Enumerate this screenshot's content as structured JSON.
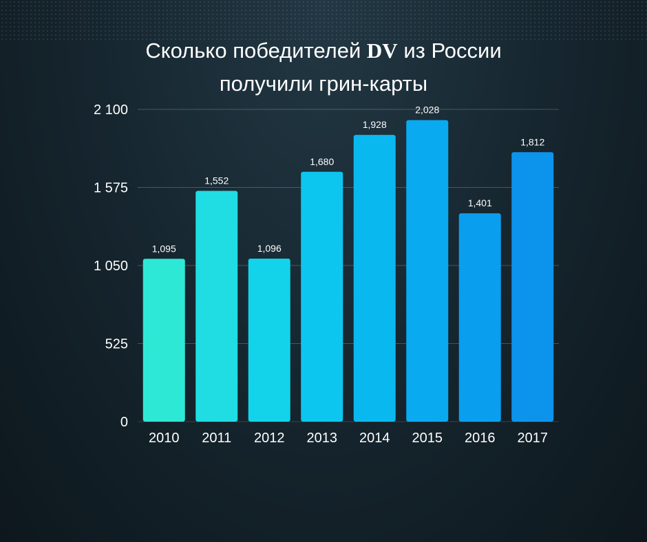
{
  "title": {
    "part1": "Сколько победителей ",
    "accent": "DV",
    "part2": " из России",
    "line2": "получили грин-карты"
  },
  "chart_data": {
    "type": "bar",
    "title": "Сколько победителей DV из России получили грин-карты",
    "categories": [
      "2010",
      "2011",
      "2012",
      "2013",
      "2014",
      "2015",
      "2016",
      "2017"
    ],
    "values": [
      1095,
      1552,
      1096,
      1680,
      1928,
      2028,
      1401,
      1812
    ],
    "value_labels": [
      "1,095",
      "1,552",
      "1,096",
      "1,680",
      "1,928",
      "2,028",
      "1,401",
      "1,812"
    ],
    "ylim": [
      0,
      2100
    ],
    "yticks": [
      0,
      525,
      1050,
      1575,
      2100
    ],
    "ytick_labels": [
      "0",
      "525",
      "1 050",
      "1 575",
      "2 100"
    ],
    "grid": true,
    "colors": [
      "#2ee8d6",
      "#1fdde3",
      "#13d3ea",
      "#0dc6ef",
      "#0ab8f0",
      "#0aaaf0",
      "#0a9eee",
      "#0c94ec"
    ]
  }
}
